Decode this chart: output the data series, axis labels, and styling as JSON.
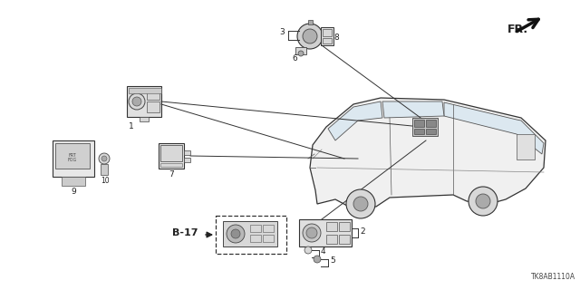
{
  "bg_color": "#ffffff",
  "line_color": "#333333",
  "diagram_code": "TK8AB1110A",
  "fr_label": "FR.",
  "b17_label": "B-17",
  "dark": "#222222",
  "mid": "#666666",
  "light_fill": "#f0f0f0",
  "med_fill": "#d8d8d8",
  "dark_fill": "#aaaaaa"
}
